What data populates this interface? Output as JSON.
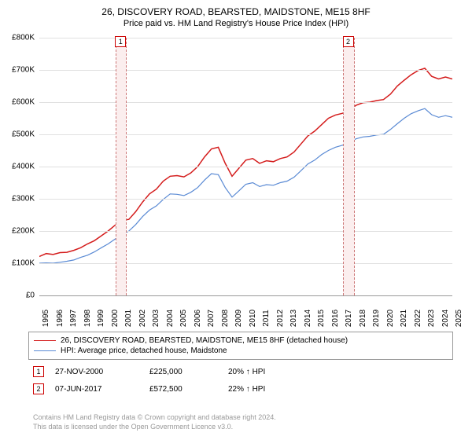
{
  "title_main": "26, DISCOVERY ROAD, BEARSTED, MAIDSTONE, ME15 8HF",
  "title_sub": "Price paid vs. HM Land Registry's House Price Index (HPI)",
  "chart": {
    "type": "line",
    "background_color": "#ffffff",
    "grid_color": "#e0e0e0",
    "ylim": [
      0,
      800000
    ],
    "ytick_step": 100000,
    "ytick_labels": [
      "£0",
      "£100K",
      "£200K",
      "£300K",
      "£400K",
      "£500K",
      "£600K",
      "£700K",
      "£800K"
    ],
    "xlim": [
      1995,
      2025
    ],
    "xtick_step": 1,
    "xtick_labels": [
      "1995",
      "1996",
      "1997",
      "1998",
      "1999",
      "2000",
      "2001",
      "2002",
      "2003",
      "2004",
      "2005",
      "2006",
      "2007",
      "2008",
      "2009",
      "2010",
      "2011",
      "2012",
      "2013",
      "2014",
      "2015",
      "2016",
      "2017",
      "2018",
      "2019",
      "2020",
      "2021",
      "2022",
      "2023",
      "2024",
      "2025"
    ],
    "series": [
      {
        "name": "price_paid",
        "color": "#d41c1c",
        "line_width": 1.5,
        "data": [
          [
            1995,
            121000
          ],
          [
            1995.5,
            130000
          ],
          [
            1996,
            127000
          ],
          [
            1996.5,
            133000
          ],
          [
            1997,
            134000
          ],
          [
            1997.5,
            140000
          ],
          [
            1998,
            148000
          ],
          [
            1998.5,
            160000
          ],
          [
            1999,
            170000
          ],
          [
            1999.5,
            185000
          ],
          [
            2000,
            200000
          ],
          [
            2000.5,
            218000
          ],
          [
            2000.9,
            225000
          ],
          [
            2001,
            233000
          ],
          [
            2001.5,
            236000
          ],
          [
            2002,
            260000
          ],
          [
            2002.5,
            290000
          ],
          [
            2003,
            315000
          ],
          [
            2003.5,
            330000
          ],
          [
            2004,
            355000
          ],
          [
            2004.5,
            370000
          ],
          [
            2005,
            372000
          ],
          [
            2005.5,
            368000
          ],
          [
            2006,
            380000
          ],
          [
            2006.5,
            400000
          ],
          [
            2007,
            430000
          ],
          [
            2007.5,
            455000
          ],
          [
            2008,
            460000
          ],
          [
            2008.5,
            410000
          ],
          [
            2009,
            370000
          ],
          [
            2009.5,
            395000
          ],
          [
            2010,
            420000
          ],
          [
            2010.5,
            425000
          ],
          [
            2011,
            410000
          ],
          [
            2011.5,
            418000
          ],
          [
            2012,
            415000
          ],
          [
            2012.5,
            425000
          ],
          [
            2013,
            430000
          ],
          [
            2013.5,
            445000
          ],
          [
            2014,
            470000
          ],
          [
            2014.5,
            495000
          ],
          [
            2015,
            510000
          ],
          [
            2015.5,
            530000
          ],
          [
            2016,
            550000
          ],
          [
            2016.5,
            560000
          ],
          [
            2017,
            565000
          ],
          [
            2017.43,
            572500
          ],
          [
            2017.5,
            575000
          ],
          [
            2018,
            590000
          ],
          [
            2018.5,
            598000
          ],
          [
            2019,
            600000
          ],
          [
            2019.5,
            605000
          ],
          [
            2020,
            608000
          ],
          [
            2020.5,
            625000
          ],
          [
            2021,
            650000
          ],
          [
            2021.5,
            668000
          ],
          [
            2022,
            685000
          ],
          [
            2022.5,
            698000
          ],
          [
            2023,
            705000
          ],
          [
            2023.5,
            680000
          ],
          [
            2024,
            672000
          ],
          [
            2024.5,
            678000
          ],
          [
            2025,
            672000
          ]
        ]
      },
      {
        "name": "hpi",
        "color": "#5a8ad4",
        "line_width": 1.2,
        "data": [
          [
            1995,
            100000
          ],
          [
            1995.5,
            101000
          ],
          [
            1996,
            100000
          ],
          [
            1996.5,
            103000
          ],
          [
            1997,
            106000
          ],
          [
            1997.5,
            110000
          ],
          [
            1998,
            118000
          ],
          [
            1998.5,
            125000
          ],
          [
            1999,
            135000
          ],
          [
            1999.5,
            148000
          ],
          [
            2000,
            160000
          ],
          [
            2000.5,
            175000
          ],
          [
            2001,
            188000
          ],
          [
            2001.5,
            200000
          ],
          [
            2002,
            220000
          ],
          [
            2002.5,
            245000
          ],
          [
            2003,
            265000
          ],
          [
            2003.5,
            278000
          ],
          [
            2004,
            298000
          ],
          [
            2004.5,
            315000
          ],
          [
            2005,
            314000
          ],
          [
            2005.5,
            310000
          ],
          [
            2006,
            320000
          ],
          [
            2006.5,
            335000
          ],
          [
            2007,
            358000
          ],
          [
            2007.5,
            378000
          ],
          [
            2008,
            375000
          ],
          [
            2008.5,
            335000
          ],
          [
            2009,
            305000
          ],
          [
            2009.5,
            325000
          ],
          [
            2010,
            345000
          ],
          [
            2010.5,
            350000
          ],
          [
            2011,
            338000
          ],
          [
            2011.5,
            344000
          ],
          [
            2012,
            342000
          ],
          [
            2012.5,
            350000
          ],
          [
            2013,
            355000
          ],
          [
            2013.5,
            367000
          ],
          [
            2014,
            387000
          ],
          [
            2014.5,
            408000
          ],
          [
            2015,
            420000
          ],
          [
            2015.5,
            437000
          ],
          [
            2016,
            450000
          ],
          [
            2016.5,
            460000
          ],
          [
            2017,
            466000
          ],
          [
            2017.5,
            474000
          ],
          [
            2018,
            486000
          ],
          [
            2018.5,
            492000
          ],
          [
            2019,
            494000
          ],
          [
            2019.5,
            498000
          ],
          [
            2020,
            500000
          ],
          [
            2020.5,
            515000
          ],
          [
            2021,
            533000
          ],
          [
            2021.5,
            550000
          ],
          [
            2022,
            564000
          ],
          [
            2022.5,
            573000
          ],
          [
            2023,
            580000
          ],
          [
            2023.5,
            561000
          ],
          [
            2024,
            553000
          ],
          [
            2024.5,
            558000
          ],
          [
            2025,
            553000
          ]
        ]
      }
    ],
    "markers": [
      {
        "id": "1",
        "x": 2000.9,
        "y": 225000,
        "color": "#c00000"
      },
      {
        "id": "2",
        "x": 2017.43,
        "y": 572500,
        "color": "#c00000"
      }
    ],
    "marker_band_color": "#fbeeee",
    "marker_band_width": 0.7
  },
  "legend": {
    "items": [
      {
        "color": "#d41c1c",
        "label": "26, DISCOVERY ROAD, BEARSTED, MAIDSTONE, ME15 8HF (detached house)"
      },
      {
        "color": "#5a8ad4",
        "label": "HPI: Average price, detached house, Maidstone"
      }
    ]
  },
  "sales": [
    {
      "id": "1",
      "date": "27-NOV-2000",
      "price": "£225,000",
      "pct": "20% ↑ HPI"
    },
    {
      "id": "2",
      "date": "07-JUN-2017",
      "price": "£572,500",
      "pct": "22% ↑ HPI"
    }
  ],
  "footer_line1": "Contains HM Land Registry data © Crown copyright and database right 2024.",
  "footer_line2": "This data is licensed under the Open Government Licence v3.0."
}
